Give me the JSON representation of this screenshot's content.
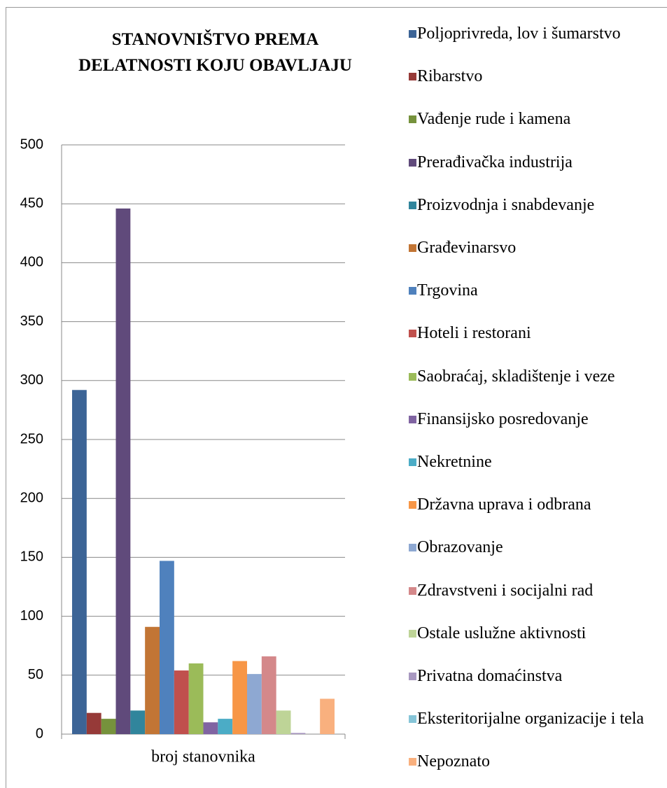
{
  "chart_data": {
    "type": "bar",
    "title": "STANOVNIŠTVO PREMA DELATNOSTI KOJU OBAVLJAJU",
    "categories": [
      "broj stanovnika"
    ],
    "series": [
      {
        "name": "Poljoprivreda, lov i šumarstvo",
        "color": "#3c6496",
        "values": [
          292
        ]
      },
      {
        "name": "Ribarstvo",
        "color": "#963a38",
        "values": [
          18
        ]
      },
      {
        "name": "Vađenje rude i kamena",
        "color": "#76923c",
        "values": [
          13
        ]
      },
      {
        "name": "Prerađivačka industrija",
        "color": "#604a7b",
        "values": [
          446
        ]
      },
      {
        "name": "Proizvodnja i snabdevanje",
        "color": "#31859c",
        "values": [
          20
        ]
      },
      {
        "name": "Građevinarsvo",
        "color": "#c27535",
        "values": [
          91
        ]
      },
      {
        "name": "Trgovina",
        "color": "#4f81bd",
        "values": [
          147
        ]
      },
      {
        "name": "Hoteli i restorani",
        "color": "#c0504d",
        "values": [
          54
        ]
      },
      {
        "name": "Saobraćaj, skladištenje i veze",
        "color": "#9bbb59",
        "values": [
          60
        ]
      },
      {
        "name": "Finansijsko posredovanje",
        "color": "#8064a2",
        "values": [
          10
        ]
      },
      {
        "name": "Nekretnine",
        "color": "#4bacc6",
        "values": [
          13
        ]
      },
      {
        "name": "Državna uprava i odbrana",
        "color": "#f79646",
        "values": [
          62
        ]
      },
      {
        "name": "Obrazovanje",
        "color": "#8ea8d2",
        "values": [
          51
        ]
      },
      {
        "name": "Zdravstveni i socijalni rad",
        "color": "#d4888a",
        "values": [
          66
        ]
      },
      {
        "name": "Ostale uslužne aktivnosti",
        "color": "#bed497",
        "values": [
          20
        ]
      },
      {
        "name": "Privatna domaćinstva",
        "color": "#a898c0",
        "values": [
          1
        ]
      },
      {
        "name": "Eksteritorijalne organizacije i tela",
        "color": "#86c5d8",
        "values": [
          0
        ]
      },
      {
        "name": "Nepoznato",
        "color": "#f9b07e",
        "values": [
          30
        ]
      }
    ],
    "ylim": [
      0,
      500
    ],
    "yticks": [
      0,
      50,
      100,
      150,
      200,
      250,
      300,
      350,
      400,
      450,
      500
    ],
    "grid": true,
    "legend": "right"
  }
}
